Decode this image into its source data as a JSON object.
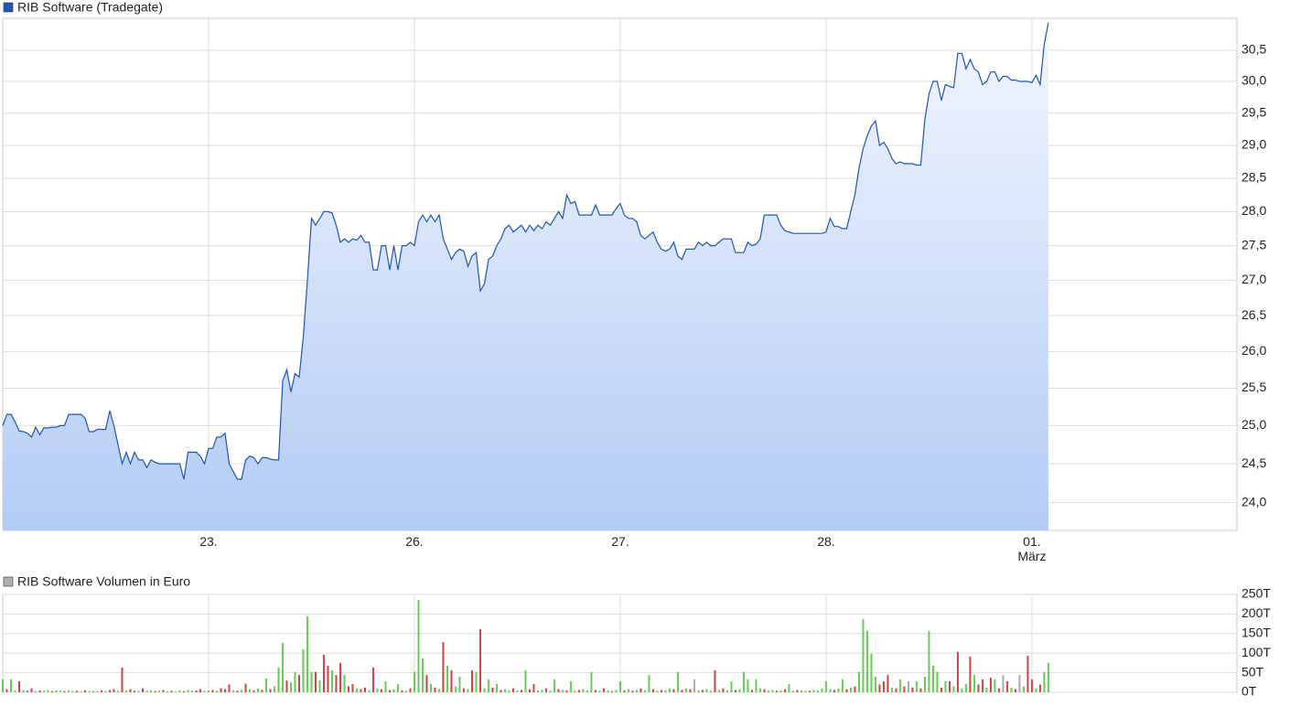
{
  "chart_data": [
    {
      "type": "area",
      "title": "RIB Software (Tradegate)",
      "color": "#1f56b4",
      "fill_top": "#f2f6ff",
      "fill_bottom": "#b3cbf4",
      "log_scale": true,
      "grid": true,
      "xlim": [
        0,
        299.8
      ],
      "xticks": [
        {
          "value": 50,
          "label": "23."
        },
        {
          "value": 100,
          "label": "26."
        },
        {
          "value": 150,
          "label": "27."
        },
        {
          "value": 200,
          "label": "28."
        },
        {
          "value": 250,
          "label": "01.\nMärz"
        }
      ],
      "ylim": [
        23.65,
        31.02
      ],
      "yticks": [
        {
          "value": 24.0,
          "label": "24,0"
        },
        {
          "value": 24.5,
          "label": "24,5"
        },
        {
          "value": 25.0,
          "label": "25,0"
        },
        {
          "value": 25.5,
          "label": "25,5"
        },
        {
          "value": 26.0,
          "label": "26,0"
        },
        {
          "value": 26.5,
          "label": "26,5"
        },
        {
          "value": 27.0,
          "label": "27,0"
        },
        {
          "value": 27.5,
          "label": "27,5"
        },
        {
          "value": 28.0,
          "label": "28,0"
        },
        {
          "value": 28.5,
          "label": "28,5"
        },
        {
          "value": 29.0,
          "label": "29,0"
        },
        {
          "value": 29.5,
          "label": "29,5"
        },
        {
          "value": 30.0,
          "label": "30,0"
        },
        {
          "value": 30.5,
          "label": "30,5"
        }
      ],
      "values": [
        25.0,
        25.15,
        25.15,
        25.05,
        24.93,
        24.92,
        24.9,
        24.85,
        24.98,
        24.88,
        24.97,
        24.97,
        24.98,
        24.98,
        25.0,
        25.0,
        25.15,
        25.15,
        25.15,
        25.15,
        25.1,
        24.92,
        24.92,
        24.95,
        24.95,
        24.95,
        25.2,
        25.0,
        24.75,
        24.5,
        24.65,
        24.5,
        24.65,
        24.55,
        24.55,
        24.45,
        24.55,
        24.52,
        24.5,
        24.5,
        24.5,
        24.5,
        24.5,
        24.5,
        24.3,
        24.65,
        24.65,
        24.65,
        24.6,
        24.5,
        24.7,
        24.7,
        24.85,
        24.85,
        24.9,
        24.5,
        24.4,
        24.3,
        24.3,
        24.55,
        24.6,
        24.58,
        24.5,
        24.58,
        24.58,
        24.56,
        24.55,
        24.55,
        25.6,
        25.75,
        25.45,
        25.7,
        25.65,
        26.2,
        27.0,
        27.9,
        27.8,
        27.9,
        28.0,
        28.0,
        27.98,
        27.8,
        27.55,
        27.6,
        27.55,
        27.6,
        27.58,
        27.65,
        27.55,
        27.55,
        27.15,
        27.15,
        27.5,
        27.5,
        27.15,
        27.5,
        27.15,
        27.5,
        27.5,
        27.55,
        27.5,
        27.85,
        27.95,
        27.85,
        27.95,
        27.85,
        27.95,
        27.6,
        27.45,
        27.3,
        27.4,
        27.45,
        27.42,
        27.2,
        27.35,
        27.4,
        26.85,
        26.95,
        27.3,
        27.35,
        27.5,
        27.6,
        27.75,
        27.8,
        27.7,
        27.75,
        27.8,
        27.7,
        27.8,
        27.72,
        27.8,
        27.75,
        27.85,
        27.8,
        27.9,
        28.0,
        27.9,
        28.25,
        28.12,
        28.15,
        27.95,
        27.95,
        27.95,
        27.95,
        28.1,
        27.95,
        27.95,
        27.95,
        27.95,
        28.05,
        28.12,
        27.95,
        27.9,
        27.9,
        27.85,
        27.65,
        27.6,
        27.65,
        27.7,
        27.55,
        27.45,
        27.42,
        27.45,
        27.55,
        27.35,
        27.3,
        27.45,
        27.45,
        27.45,
        27.55,
        27.5,
        27.55,
        27.5,
        27.5,
        27.55,
        27.6,
        27.6,
        27.6,
        27.4,
        27.4,
        27.4,
        27.55,
        27.5,
        27.52,
        27.6,
        27.95,
        27.95,
        27.95,
        27.95,
        27.8,
        27.72,
        27.7,
        27.68,
        27.68,
        27.68,
        27.68,
        27.68,
        27.68,
        27.68,
        27.68,
        27.7,
        27.9,
        27.78,
        27.78,
        27.75,
        27.75,
        28.0,
        28.25,
        28.65,
        28.95,
        29.15,
        29.3,
        29.38,
        29.0,
        29.05,
        28.95,
        28.8,
        28.72,
        28.75,
        28.72,
        28.72,
        28.72,
        28.7,
        28.7,
        29.4,
        29.8,
        30.0,
        30.0,
        29.7,
        29.95,
        29.92,
        29.9,
        30.45,
        30.45,
        30.2,
        30.35,
        30.2,
        30.15,
        29.95,
        30.0,
        30.15,
        30.15,
        30.0,
        30.08,
        30.08,
        30.02,
        30.02,
        30.0,
        30.0,
        30.0,
        29.98,
        30.1,
        29.95,
        30.6,
        30.95
      ]
    },
    {
      "type": "bar",
      "title": "RIB Software Volumen in Euro",
      "color": "#b0b0b0",
      "grid": true,
      "ylim": [
        0,
        250
      ],
      "yticks": [
        {
          "value": 0,
          "label": "0T"
        },
        {
          "value": 50,
          "label": "50T"
        },
        {
          "value": 100,
          "label": "100T"
        },
        {
          "value": 150,
          "label": "150T"
        },
        {
          "value": 200,
          "label": "200T"
        },
        {
          "value": 250,
          "label": "250T"
        }
      ],
      "values": [
        33,
        8,
        33,
        5,
        28,
        6,
        4,
        10,
        3,
        5,
        4,
        6,
        3,
        5,
        4,
        3,
        5,
        3,
        4,
        2,
        5,
        3,
        4,
        2,
        5,
        3,
        6,
        8,
        4,
        63,
        5,
        8,
        4,
        3,
        10,
        4,
        5,
        3,
        4,
        6,
        3,
        4,
        2,
        5,
        3,
        6,
        4,
        5,
        8,
        3,
        5,
        6,
        4,
        10,
        8,
        20,
        5,
        4,
        6,
        22,
        8,
        5,
        10,
        6,
        35,
        8,
        15,
        63,
        126,
        30,
        25,
        52,
        44,
        110,
        194,
        52,
        52,
        30,
        96,
        68,
        56,
        44,
        75,
        44,
        15,
        21,
        10,
        8,
        12,
        6,
        63,
        10,
        8,
        28,
        6,
        8,
        21,
        5,
        4,
        10,
        52,
        236,
        86,
        44,
        21,
        12,
        8,
        128,
        68,
        56,
        15,
        40,
        10,
        8,
        56,
        52,
        161,
        10,
        33,
        12,
        21,
        6,
        8,
        5,
        10,
        4,
        6,
        56,
        8,
        21,
        5,
        6,
        10,
        4,
        33,
        8,
        6,
        5,
        28,
        4,
        6,
        8,
        5,
        52,
        6,
        4,
        10,
        5,
        3,
        6,
        28,
        5,
        8,
        4,
        6,
        10,
        5,
        44,
        8,
        4,
        6,
        5,
        10,
        8,
        52,
        6,
        10,
        8,
        33,
        5,
        6,
        8,
        4,
        56,
        6,
        10,
        5,
        28,
        6,
        8,
        52,
        33,
        6,
        33,
        10,
        8,
        5,
        6,
        4,
        5,
        8,
        21,
        4,
        6,
        5,
        3,
        4,
        6,
        5,
        10,
        28,
        8,
        6,
        10,
        33,
        8,
        12,
        15,
        52,
        187,
        157,
        98,
        40,
        20,
        28,
        44,
        12,
        10,
        33,
        15,
        28,
        12,
        28,
        10,
        40,
        157,
        68,
        52,
        12,
        28,
        28,
        15,
        103,
        10,
        21,
        91,
        44,
        20,
        33,
        12,
        37,
        33,
        10,
        44,
        28,
        12,
        8,
        44,
        15,
        93,
        33,
        10,
        20,
        52,
        75
      ],
      "colors": [
        "#66cc55",
        "#cc4444",
        "#66cc55",
        "#66cc55",
        "#cc4444",
        "#66cc55",
        "#cc4444",
        "#cc4444",
        "#66cc55",
        "#cc4444",
        "#66cc55",
        "#66cc55",
        "#cc4444",
        "#66cc55",
        "#66cc55",
        "#cc4444",
        "#66cc55",
        "#66cc55",
        "#cc4444",
        "#66cc55",
        "#cc4444",
        "#66cc55",
        "#66cc55",
        "#cc4444",
        "#cc4444",
        "#66cc55",
        "#cc4444",
        "#cc4444",
        "#66cc55",
        "#cc4444",
        "#66cc55",
        "#cc4444",
        "#cc4444",
        "#66cc55",
        "#cc4444",
        "#66cc55",
        "#66cc55",
        "#cc4444",
        "#66cc55",
        "#cc4444",
        "#66cc55",
        "#cc4444",
        "#66cc55",
        "#66cc55",
        "#cc4444",
        "#66cc55",
        "#66cc55",
        "#cc4444",
        "#cc4444",
        "#66cc55",
        "#66cc55",
        "#cc4444",
        "#66cc55",
        "#cc4444",
        "#cc4444",
        "#cc4444",
        "#66cc55",
        "#cc4444",
        "#66cc55",
        "#cc4444",
        "#66cc55",
        "#cc4444",
        "#66cc55",
        "#cc4444",
        "#66cc55",
        "#cc4444",
        "#66cc55",
        "#66cc55",
        "#66cc55",
        "#cc4444",
        "#66cc55",
        "#66cc55",
        "#cc4444",
        "#66cc55",
        "#66cc55",
        "#66cc55",
        "#cc4444",
        "#66cc55",
        "#cc4444",
        "#cc4444",
        "#66cc55",
        "#cc4444",
        "#cc4444",
        "#66cc55",
        "#cc4444",
        "#cc4444",
        "#66cc55",
        "#cc4444",
        "#cc4444",
        "#66cc55",
        "#cc4444",
        "#66cc55",
        "#cc4444",
        "#66cc55",
        "#cc4444",
        "#66cc55",
        "#66cc55",
        "#cc4444",
        "#66cc55",
        "#cc4444",
        "#66cc55",
        "#66cc55",
        "#66cc55",
        "#cc4444",
        "#66cc55",
        "#cc4444",
        "#66cc55",
        "#cc4444",
        "#66cc55",
        "#cc4444",
        "#66cc55",
        "#66cc55",
        "#cc4444",
        "#66cc55",
        "#cc4444",
        "#66cc55",
        "#cc4444",
        "#66cc55",
        "#66cc55",
        "#cc4444",
        "#66cc55",
        "#cc4444",
        "#66cc55",
        "#66cc55",
        "#cc4444",
        "#66cc55",
        "#cc4444",
        "#66cc55",
        "#cc4444",
        "#cc4444",
        "#66cc55",
        "#66cc55",
        "#cc4444",
        "#66cc55",
        "#66cc55",
        "#cc4444",
        "#66cc55",
        "#cc4444",
        "#66cc55",
        "#66cc55",
        "#cc4444",
        "#66cc55",
        "#66cc55",
        "#66cc55",
        "#cc4444",
        "#66cc55",
        "#cc4444",
        "#66cc55",
        "#cc4444",
        "#66cc55",
        "#66cc55",
        "#cc4444",
        "#66cc55",
        "#cc4444",
        "#66cc55",
        "#cc4444",
        "#66cc55",
        "#66cc55",
        "#cc4444",
        "#66cc55",
        "#cc4444",
        "#66cc55",
        "#66cc55",
        "#cc4444",
        "#66cc55",
        "#cc4444",
        "#66cc55",
        "#cc4444",
        "#aaaaaa",
        "#66cc55",
        "#cc4444",
        "#66cc55",
        "#66cc55",
        "#cc4444",
        "#66cc55",
        "#cc4444",
        "#66cc55",
        "#66cc55",
        "#cc4444",
        "#66cc55",
        "#66cc55",
        "#66cc55",
        "#cc4444",
        "#66cc55",
        "#66cc55",
        "#cc4444",
        "#66cc55",
        "#66cc55",
        "#cc4444",
        "#66cc55",
        "#cc4444",
        "#66cc55",
        "#66cc55",
        "#cc4444",
        "#66cc55",
        "#66cc55",
        "#cc4444",
        "#66cc55",
        "#66cc55",
        "#66cc55",
        "#66cc55",
        "#66cc55",
        "#cc4444",
        "#66cc55",
        "#66cc55",
        "#cc4444",
        "#66cc55",
        "#cc4444",
        "#66cc55",
        "#66cc55",
        "#66cc55",
        "#66cc55",
        "#66cc55",
        "#cc4444",
        "#cc4444",
        "#cc4444",
        "#66cc55",
        "#cc4444",
        "#66cc55",
        "#cc4444",
        "#aaaaaa",
        "#cc4444",
        "#66cc55",
        "#cc4444",
        "#66cc55",
        "#66cc55",
        "#66cc55",
        "#66cc55",
        "#cc4444",
        "#66cc55",
        "#cc4444",
        "#66cc55",
        "#cc4444",
        "#66cc55",
        "#66cc55",
        "#cc4444",
        "#66cc55",
        "#cc4444",
        "#cc4444",
        "#66cc55",
        "#cc4444",
        "#66cc55",
        "#cc4444",
        "#aaaaaa",
        "#cc4444",
        "#66cc55",
        "#cc4444",
        "#aaaaaa",
        "#66cc55",
        "#cc4444",
        "#cc4444",
        "#66cc55",
        "#cc4444",
        "#66cc55",
        "#66cc55"
      ]
    }
  ]
}
